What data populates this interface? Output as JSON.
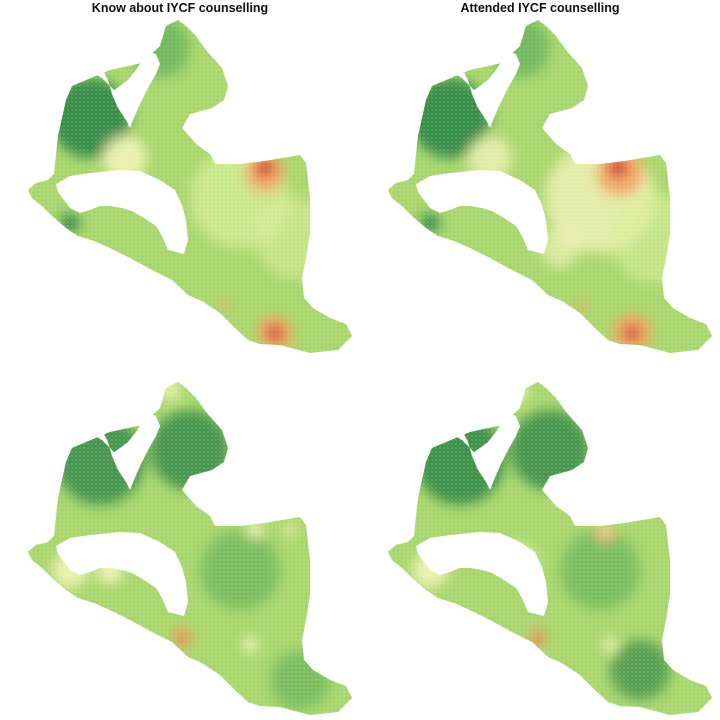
{
  "titles": {
    "left": "Know about IYCF counselling",
    "right": "Attended IYCF counselling"
  },
  "colors": {
    "dark_green": "#1a7a3e",
    "green": "#5cad57",
    "light_green": "#a8d66c",
    "yellow_green": "#d8ef98",
    "pale_yellow": "#fbf7bd",
    "orange": "#f3a463",
    "red": "#d12c2a",
    "background": "#ffffff"
  },
  "panels": [
    {
      "id": "top-left",
      "column": "left",
      "row": "top",
      "scheme": "greens-to-red"
    },
    {
      "id": "top-right",
      "column": "right",
      "row": "top",
      "scheme": "greens-to-red"
    },
    {
      "id": "bottom-left",
      "column": "left",
      "row": "bottom",
      "scheme": "greens-to-red"
    },
    {
      "id": "bottom-right",
      "column": "right",
      "row": "bottom",
      "scheme": "greens-to-red"
    }
  ]
}
